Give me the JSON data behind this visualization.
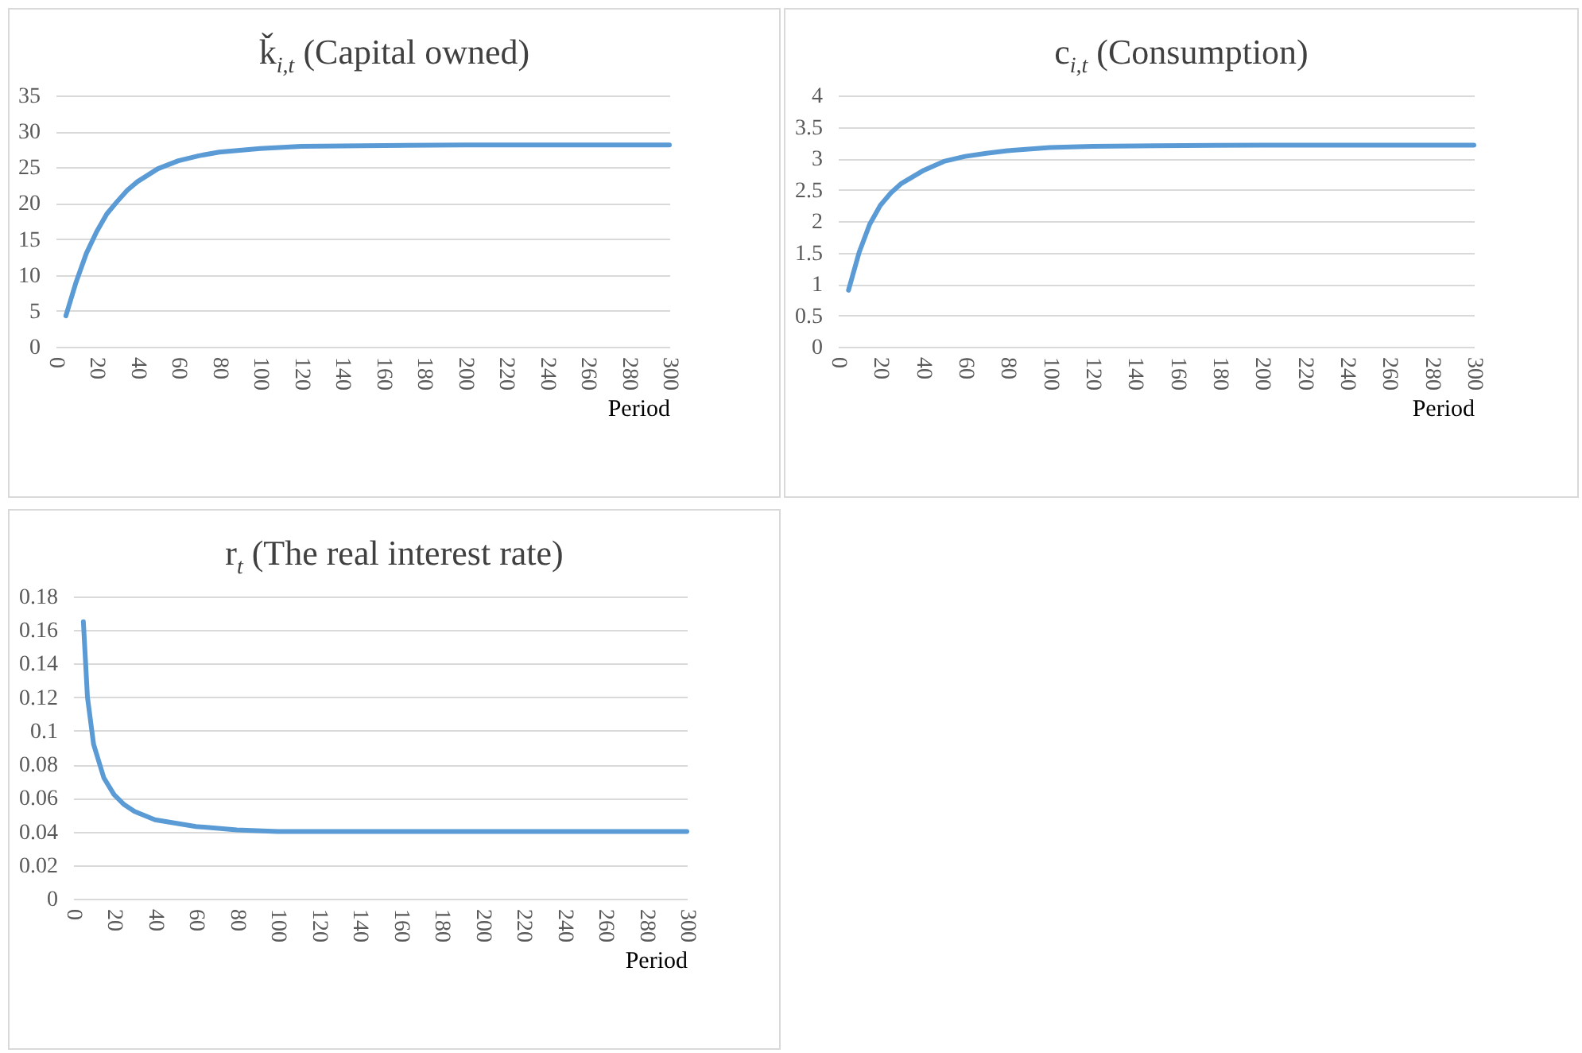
{
  "chart_data": [
    {
      "type": "line",
      "title": "ǩ$_{i,t}$ (Capital owned)",
      "xlabel": "Period",
      "x": [
        5,
        10,
        15,
        20,
        25,
        30,
        35,
        40,
        50,
        60,
        70,
        80,
        100,
        120,
        150,
        200,
        300
      ],
      "series": [
        {
          "color": "#5b9bd5",
          "values": [
            4.3,
            9,
            13,
            16,
            18.5,
            20.2,
            21.8,
            23,
            24.8,
            25.9,
            26.6,
            27.1,
            27.6,
            27.9,
            28,
            28.1,
            28.1
          ]
        }
      ],
      "xlim": [
        0,
        300
      ],
      "xticks": [
        0,
        20,
        40,
        60,
        80,
        100,
        120,
        140,
        160,
        180,
        200,
        220,
        240,
        260,
        280,
        300
      ],
      "ylim": [
        0,
        35
      ],
      "yticks": [
        0,
        5,
        10,
        15,
        20,
        25,
        30,
        35
      ],
      "grid": "y",
      "legend": false,
      "marker": "none"
    },
    {
      "type": "line",
      "title": "c$_{i,t}$ (Consumption)",
      "xlabel": "Period",
      "x": [
        5,
        10,
        15,
        20,
        25,
        30,
        40,
        50,
        60,
        70,
        80,
        100,
        120,
        150,
        200,
        300
      ],
      "series": [
        {
          "color": "#5b9bd5",
          "values": [
            0.9,
            1.5,
            1.95,
            2.25,
            2.45,
            2.6,
            2.8,
            2.95,
            3.03,
            3.08,
            3.12,
            3.17,
            3.19,
            3.2,
            3.21,
            3.21
          ]
        }
      ],
      "xlim": [
        0,
        300
      ],
      "xticks": [
        0,
        20,
        40,
        60,
        80,
        100,
        120,
        140,
        160,
        180,
        200,
        220,
        240,
        260,
        280,
        300
      ],
      "ylim": [
        0,
        4
      ],
      "yticks": [
        0,
        0.5,
        1,
        1.5,
        2,
        2.5,
        3,
        3.5,
        4
      ],
      "grid": "y",
      "legend": false,
      "marker": "none"
    },
    {
      "type": "line",
      "title": "r$_{t}$ (The real interest rate)",
      "xlabel": "Period",
      "x": [
        5,
        7,
        10,
        15,
        20,
        25,
        30,
        40,
        50,
        60,
        80,
        100,
        150,
        300
      ],
      "series": [
        {
          "color": "#5b9bd5",
          "values": [
            0.165,
            0.12,
            0.092,
            0.072,
            0.062,
            0.056,
            0.052,
            0.047,
            0.045,
            0.043,
            0.041,
            0.04,
            0.04,
            0.04
          ]
        }
      ],
      "xlim": [
        0,
        300
      ],
      "xticks": [
        0,
        20,
        40,
        60,
        80,
        100,
        120,
        140,
        160,
        180,
        200,
        220,
        240,
        260,
        280,
        300
      ],
      "ylim": [
        0,
        0.18
      ],
      "yticks": [
        0,
        0.02,
        0.04,
        0.06,
        0.08,
        0.1,
        0.12,
        0.14,
        0.16,
        0.18
      ],
      "grid": "y",
      "legend": false,
      "marker": "none"
    }
  ]
}
